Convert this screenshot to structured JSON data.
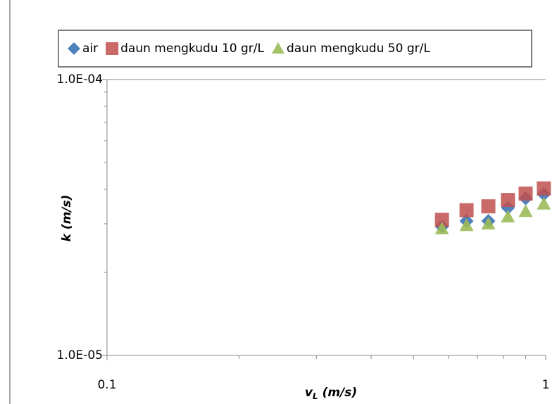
{
  "chart_data": {
    "type": "scatter",
    "x_label": [
      "v",
      "L",
      "(m/s)"
    ],
    "y_label": "k (m/s)",
    "x_log": true,
    "y_log": true,
    "xlim": [
      0.1,
      1
    ],
    "ylim": [
      1e-05,
      0.0001
    ],
    "xticks": [
      0.1,
      1
    ],
    "x_minor_ticks": [
      0.2,
      0.3,
      0.4,
      0.5,
      0.6,
      0.7,
      0.8,
      0.9
    ],
    "yticks": [
      {
        "value": 1e-05,
        "label": "1.0E-05"
      },
      {
        "value": 0.0001,
        "label": "1.0E-04"
      }
    ],
    "y_minor_ticks": [
      2e-05,
      3e-05,
      4e-05,
      5e-05,
      6e-05,
      7e-05,
      8e-05,
      9e-05
    ],
    "legend": "top",
    "series": [
      {
        "name": "air",
        "color": "#4f81bd",
        "marker": "diamond",
        "x": [
          0.58,
          0.66,
          0.74,
          0.82,
          0.9,
          0.99
        ],
        "values": [
          2.93e-05,
          3.07e-05,
          3.07e-05,
          3.43e-05,
          3.71e-05,
          3.84e-05
        ]
      },
      {
        "name": "daun mengkudu 10 gr/L",
        "color": "#c0504d",
        "marker": "square",
        "x": [
          0.58,
          0.66,
          0.74,
          0.82,
          0.9,
          0.99
        ],
        "values": [
          3.1e-05,
          3.36e-05,
          3.47e-05,
          3.66e-05,
          3.86e-05,
          4.03e-05
        ]
      },
      {
        "name": "daun mengkudu 50 gr/L",
        "color": "#9bbb59",
        "marker": "triangle",
        "x": [
          0.58,
          0.66,
          0.74,
          0.82,
          0.9,
          0.99
        ],
        "values": [
          2.88e-05,
          2.96e-05,
          3e-05,
          3.18e-05,
          3.33e-05,
          3.54e-05
        ]
      }
    ]
  }
}
